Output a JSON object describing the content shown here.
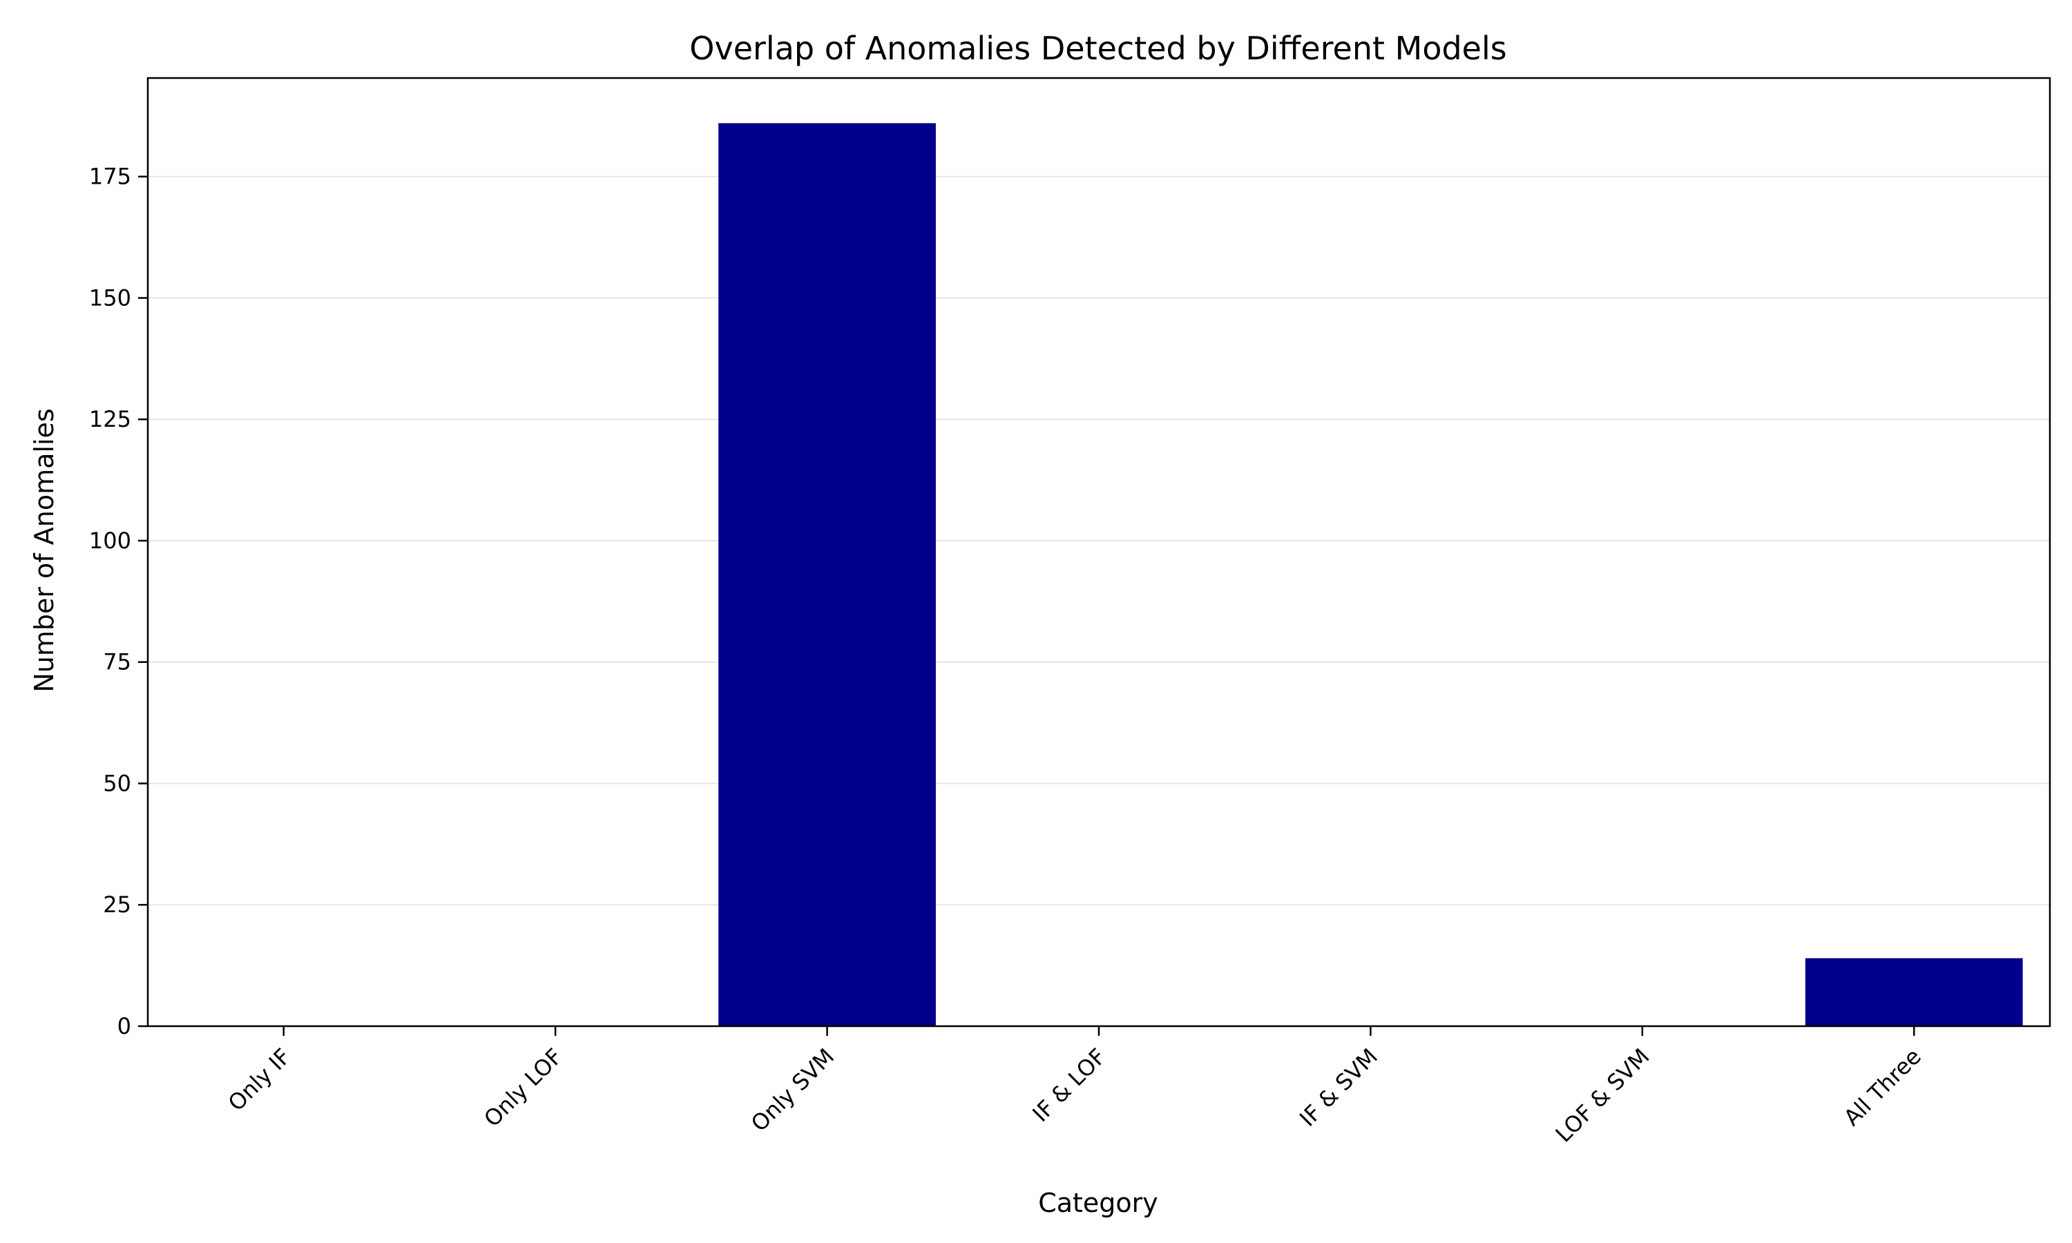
{
  "chart_data": {
    "type": "bar",
    "title": "Overlap of Anomalies Detected by Different Models",
    "xlabel": "Category",
    "ylabel": "Number of Anomalies",
    "categories": [
      "Only IF",
      "Only LOF",
      "Only SVM",
      "IF & LOF",
      "IF & SVM",
      "LOF & SVM",
      "All Three"
    ],
    "values": [
      0,
      0,
      186,
      0,
      0,
      0,
      14
    ],
    "ylim": [
      0,
      195.3
    ],
    "yticks": [
      0,
      25,
      50,
      75,
      100,
      125,
      150,
      175
    ],
    "grid": "y",
    "legend": "none",
    "bar_color": "#00008b",
    "grid_color": "#e6e6e6",
    "axis_color": "#000000"
  }
}
